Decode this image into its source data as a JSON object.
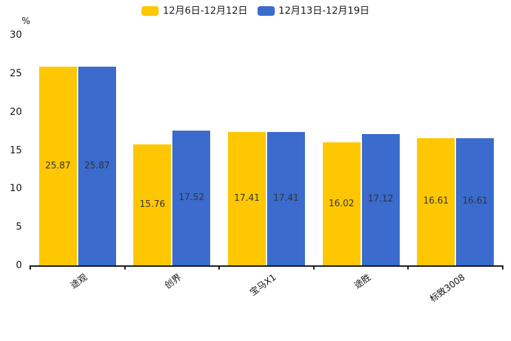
{
  "chart_data": {
    "type": "bar",
    "title": "",
    "unit_label": "%",
    "categories": [
      "途观",
      "创界",
      "宝马X1",
      "途胜",
      "标致3008"
    ],
    "series": [
      {
        "name": "12月6日-12月12日",
        "color": "#fec702",
        "values": [
          25.87,
          15.76,
          17.41,
          16.02,
          16.61
        ]
      },
      {
        "name": "12月13日-12月19日",
        "color": "#3a6bcd",
        "values": [
          25.87,
          17.52,
          17.41,
          17.12,
          16.61
        ]
      }
    ],
    "ylim": [
      0,
      30
    ],
    "yticks": [
      0,
      5,
      10,
      15,
      20,
      25,
      30
    ],
    "grid": false,
    "legend_position": "top",
    "value_labels": true,
    "axis_color": "#111111",
    "label_color": "#333333"
  }
}
